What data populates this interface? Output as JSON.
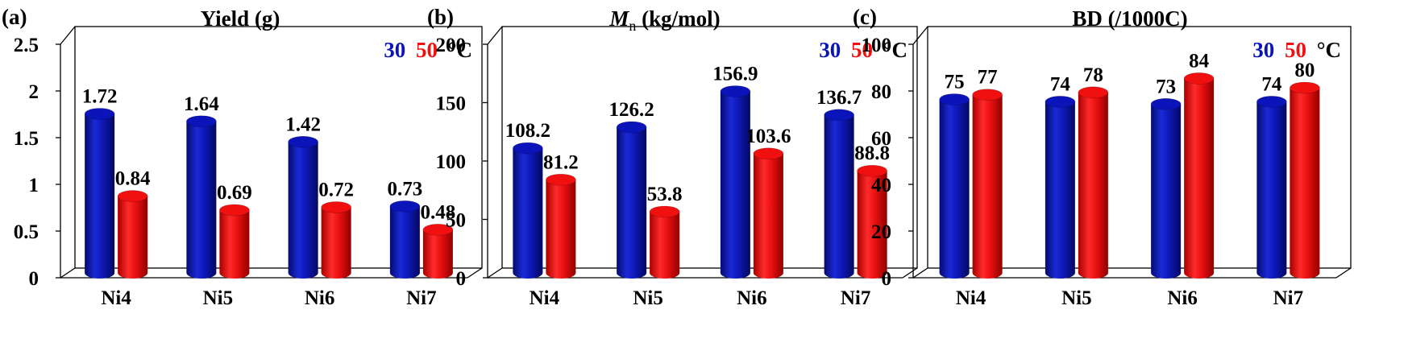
{
  "colors": {
    "series_30": "#0a14b8",
    "series_50": "#f01010",
    "text": "#000000"
  },
  "legend": {
    "label_30": "30",
    "label_50": "50",
    "unit": "°C"
  },
  "chart_data": [
    {
      "type": "bar",
      "panel": "(a)",
      "title": "Yield (g)",
      "title_parts": [],
      "categories": [
        "Ni4",
        "Ni5",
        "Ni6",
        "Ni7"
      ],
      "series": [
        {
          "name": "30",
          "values": [
            1.72,
            1.64,
            1.42,
            0.73
          ],
          "labels": [
            "1.72",
            "1.64",
            "1.42",
            "0.73"
          ]
        },
        {
          "name": "50",
          "values": [
            0.84,
            0.69,
            0.72,
            0.48
          ],
          "labels": [
            "0.84",
            "0.69",
            "0.72",
            "0.48"
          ]
        }
      ],
      "ylim": [
        0,
        2.5
      ],
      "yticks": [
        0,
        0.5,
        1,
        1.5,
        2,
        2.5
      ],
      "yticklabels": [
        "0",
        "0.5",
        "1",
        "1.5",
        "2",
        "2.5"
      ],
      "legend_position": "top-right"
    },
    {
      "type": "bar",
      "panel": "(b)",
      "title": "",
      "title_parts": [
        "M",
        "n",
        " (kg/mol)"
      ],
      "categories": [
        "Ni4",
        "Ni5",
        "Ni6",
        "Ni7"
      ],
      "series": [
        {
          "name": "30",
          "values": [
            108.2,
            126.2,
            156.9,
            136.7
          ],
          "labels": [
            "108.2",
            "126.2",
            "156.9",
            "136.7"
          ]
        },
        {
          "name": "50",
          "values": [
            81.2,
            53.8,
            103.6,
            88.8
          ],
          "labels": [
            "81.2",
            "53.8",
            "103.6",
            "88.8"
          ]
        }
      ],
      "ylim": [
        0,
        200
      ],
      "yticks": [
        0,
        50,
        100,
        150,
        200
      ],
      "yticklabels": [
        "0",
        "50",
        "100",
        "150",
        "200"
      ],
      "legend_position": "top-right"
    },
    {
      "type": "bar",
      "panel": "(c)",
      "title": "BD (/1000C)",
      "title_parts": [],
      "categories": [
        "Ni4",
        "Ni5",
        "Ni6",
        "Ni7"
      ],
      "series": [
        {
          "name": "30",
          "values": [
            75,
            74,
            73,
            74
          ],
          "labels": [
            "75",
            "74",
            "73",
            "74"
          ]
        },
        {
          "name": "50",
          "values": [
            77,
            78,
            84,
            80
          ],
          "labels": [
            "77",
            "78",
            "84",
            "80"
          ]
        }
      ],
      "ylim": [
        0,
        100
      ],
      "yticks": [
        0,
        20,
        40,
        60,
        80,
        100
      ],
      "yticklabels": [
        "0",
        "20",
        "40",
        "60",
        "80",
        "100"
      ],
      "legend_position": "top-right"
    }
  ]
}
